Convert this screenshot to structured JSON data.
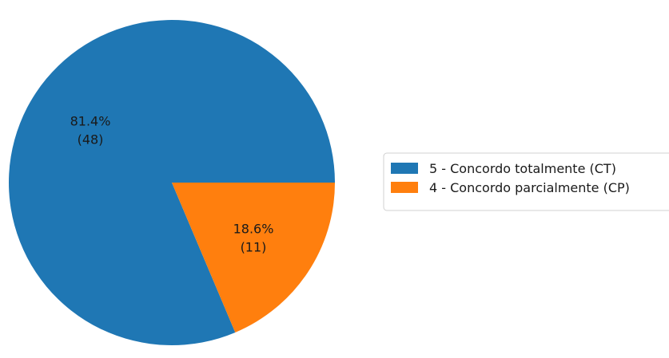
{
  "chart_data": {
    "type": "pie",
    "categories": [
      "5 - Concordo totalmente (CT)",
      "4 - Concordo parcialmente (CP)"
    ],
    "values": [
      48,
      11
    ],
    "percent_labels": [
      "81.4%",
      "18.6%"
    ],
    "count_labels": [
      "(48)",
      "(11)"
    ],
    "colors": [
      "#1f77b4",
      "#ff7f0e"
    ],
    "start_angle_deg": 0,
    "direction": "counterclockwise",
    "legend_position": "right",
    "title": ""
  }
}
